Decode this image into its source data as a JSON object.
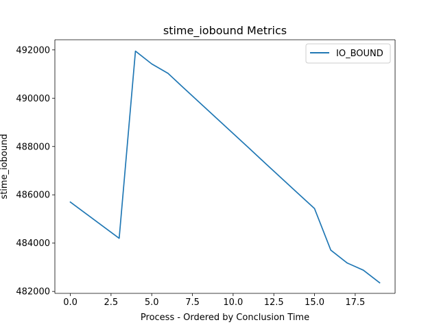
{
  "chart_data": {
    "type": "line",
    "title": "stime_iobound Metrics",
    "xlabel": "Process - Ordered by Conclusion Time",
    "ylabel": "stime_iobound",
    "xlim": [
      -0.95,
      19.95
    ],
    "ylim": [
      481920,
      492420
    ],
    "xticks": [
      0.0,
      2.5,
      5.0,
      7.5,
      10.0,
      12.5,
      15.0,
      17.5
    ],
    "xtick_labels": [
      "0.0",
      "2.5",
      "5.0",
      "7.5",
      "10.0",
      "12.5",
      "15.0",
      "17.5"
    ],
    "yticks": [
      482000,
      484000,
      486000,
      488000,
      490000,
      492000
    ],
    "ytick_labels": [
      "482000",
      "484000",
      "486000",
      "488000",
      "490000",
      "492000"
    ],
    "grid": false,
    "legend_position": "upper right",
    "series": [
      {
        "name": "IO_BOUND",
        "color": "#1f77b4",
        "x": [
          0,
          1,
          2,
          3,
          4,
          5,
          6,
          7,
          8,
          9,
          10,
          11,
          12,
          13,
          14,
          15,
          16,
          17,
          18,
          19
        ],
        "y": [
          485700,
          485200,
          484700,
          484200,
          491950,
          491420,
          491030,
          490400,
          489780,
          489160,
          488540,
          487920,
          487290,
          486670,
          486050,
          485430,
          483710,
          483180,
          482880,
          482360
        ]
      }
    ]
  }
}
